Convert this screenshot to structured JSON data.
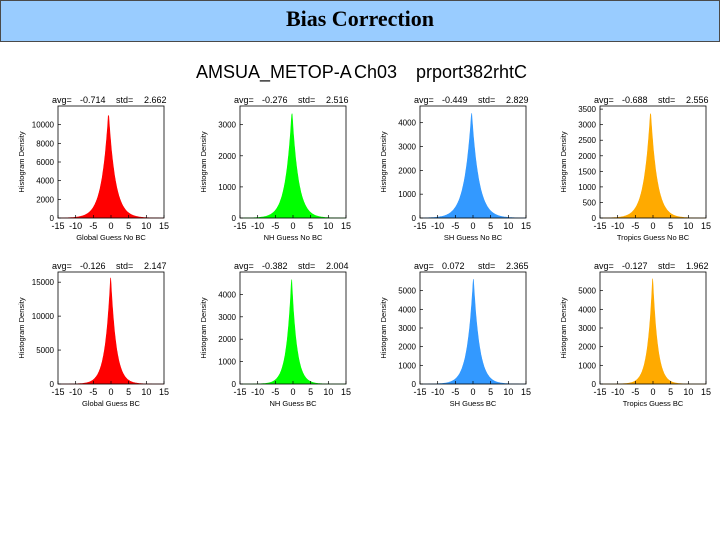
{
  "slide": {
    "title": "Bias Correction"
  },
  "figure": {
    "instrument": "AMSUA_METOP-A",
    "channel": "Ch03",
    "experiment": "prport382rhtC"
  },
  "chart_data": [
    {
      "type": "histogram",
      "title": "avg= -0.714 std= 2.662",
      "stats": {
        "avg_label": "avg=",
        "avg": "-0.714",
        "std_label": "std=",
        "std": "2.662"
      },
      "xlabel": "Global Guess  No BC",
      "ylabel": "Histogram Density",
      "xlim": [
        -15,
        15
      ],
      "ylim": [
        0,
        12000
      ],
      "xticks": [
        "-15",
        "-10",
        "-5",
        "0",
        "5",
        "10",
        "15"
      ],
      "yticks": [
        "0",
        "2000",
        "4000",
        "6000",
        "8000",
        "10000"
      ],
      "ytick_values": [
        0,
        2000,
        4000,
        6000,
        8000,
        10000
      ],
      "peak": {
        "x": -0.7,
        "y": 11300
      },
      "std": 2.662,
      "color": "#ff0000"
    },
    {
      "type": "histogram",
      "title": "avg= -0.276 std= 2.516",
      "stats": {
        "avg_label": "avg=",
        "avg": "-0.276",
        "std_label": "std=",
        "std": "2.516"
      },
      "xlabel": "NH Guess  No BC",
      "ylabel": "Histogram Density",
      "xlim": [
        -15,
        15
      ],
      "ylim": [
        0,
        3600
      ],
      "xticks": [
        "-15",
        "-10",
        "-5",
        "0",
        "5",
        "10",
        "15"
      ],
      "yticks": [
        "0",
        "1000",
        "2000",
        "3000"
      ],
      "ytick_values": [
        0,
        1000,
        2000,
        3000
      ],
      "peak": {
        "x": -0.3,
        "y": 3450
      },
      "std": 2.516,
      "color": "#00ff00"
    },
    {
      "type": "histogram",
      "title": "avg= -0.449 std= 2.829",
      "stats": {
        "avg_label": "avg=",
        "avg": "-0.449",
        "std_label": "std=",
        "std": "2.829"
      },
      "xlabel": "SH Guess  No BC",
      "ylabel": "Histogram Density",
      "xlim": [
        -15,
        15
      ],
      "ylim": [
        0,
        4700
      ],
      "xticks": [
        "-15",
        "-10",
        "-5",
        "0",
        "5",
        "10",
        "15"
      ],
      "yticks": [
        "0",
        "1000",
        "2000",
        "3000",
        "4000"
      ],
      "ytick_values": [
        0,
        1000,
        2000,
        3000,
        4000
      ],
      "peak": {
        "x": -0.4,
        "y": 4450
      },
      "std": 2.829,
      "color": "#3399ff"
    },
    {
      "type": "histogram",
      "title": "avg= -0.688 std= 2.556",
      "stats": {
        "avg_label": "avg=",
        "avg": "-0.688",
        "std_label": "std=",
        "std": "2.556"
      },
      "xlabel": "Tropics Guess  No BC",
      "ylabel": "Histogram Density",
      "xlim": [
        -15,
        15
      ],
      "ylim": [
        0,
        3600
      ],
      "xticks": [
        "-15",
        "-10",
        "-5",
        "0",
        "5",
        "10",
        "15"
      ],
      "yticks": [
        "0",
        "500",
        "1000",
        "1500",
        "2000",
        "2500",
        "3000",
        "3500"
      ],
      "ytick_values": [
        0,
        500,
        1000,
        1500,
        2000,
        2500,
        3000,
        3500
      ],
      "peak": {
        "x": -0.7,
        "y": 3450
      },
      "std": 2.556,
      "color": "#ffaa00"
    },
    {
      "type": "histogram",
      "title": "avg= -0.126 std= 2.147",
      "stats": {
        "avg_label": "avg=",
        "avg": "-0.126",
        "std_label": "std=",
        "std": "2.147"
      },
      "xlabel": "Global Guess BC",
      "ylabel": "Histogram Density",
      "xlim": [
        -15,
        15
      ],
      "ylim": [
        0,
        16500
      ],
      "xticks": [
        "-15",
        "-10",
        "-5",
        "0",
        "5",
        "10",
        "15"
      ],
      "yticks": [
        "0",
        "5000",
        "10000",
        "15000"
      ],
      "ytick_values": [
        0,
        5000,
        10000,
        15000
      ],
      "peak": {
        "x": -0.1,
        "y": 15900
      },
      "std": 2.147,
      "color": "#ff0000"
    },
    {
      "type": "histogram",
      "title": "avg= -0.382 std= 2.004",
      "stats": {
        "avg_label": "avg=",
        "avg": "-0.382",
        "std_label": "std=",
        "std": "2.004"
      },
      "xlabel": "NH Guess BC",
      "ylabel": "Histogram Density",
      "xlim": [
        -15,
        15
      ],
      "ylim": [
        0,
        5000
      ],
      "xticks": [
        "-15",
        "-10",
        "-5",
        "0",
        "5",
        "10",
        "15"
      ],
      "yticks": [
        "0",
        "1000",
        "2000",
        "3000",
        "4000"
      ],
      "ytick_values": [
        0,
        1000,
        2000,
        3000,
        4000
      ],
      "peak": {
        "x": -0.4,
        "y": 4750
      },
      "std": 2.004,
      "color": "#00ff00"
    },
    {
      "type": "histogram",
      "title": "avg= 0.072 std= 2.365",
      "stats": {
        "avg_label": "avg=",
        "avg": "0.072",
        "std_label": "std=",
        "std": "2.365"
      },
      "xlabel": "SH Guess BC",
      "ylabel": "Histogram Density",
      "xlim": [
        -15,
        15
      ],
      "ylim": [
        0,
        6000
      ],
      "xticks": [
        "-15",
        "-10",
        "-5",
        "0",
        "5",
        "10",
        "15"
      ],
      "yticks": [
        "0",
        "1000",
        "2000",
        "3000",
        "4000",
        "5000"
      ],
      "ytick_values": [
        0,
        1000,
        2000,
        3000,
        4000,
        5000
      ],
      "peak": {
        "x": 0.1,
        "y": 5700
      },
      "std": 2.365,
      "color": "#3399ff"
    },
    {
      "type": "histogram",
      "title": "avg= -0.127 std= 1.962",
      "stats": {
        "avg_label": "avg=",
        "avg": "-0.127",
        "std_label": "std=",
        "std": "1.962"
      },
      "xlabel": "Tropics Guess BC",
      "ylabel": "Histogram Density",
      "xlim": [
        -15,
        15
      ],
      "ylim": [
        0,
        6000
      ],
      "xticks": [
        "-15",
        "-10",
        "-5",
        "0",
        "5",
        "10",
        "15"
      ],
      "yticks": [
        "0",
        "1000",
        "2000",
        "3000",
        "4000",
        "5000"
      ],
      "ytick_values": [
        0,
        1000,
        2000,
        3000,
        4000,
        5000
      ],
      "peak": {
        "x": -0.1,
        "y": 5750
      },
      "std": 1.962,
      "color": "#ffaa00"
    }
  ]
}
